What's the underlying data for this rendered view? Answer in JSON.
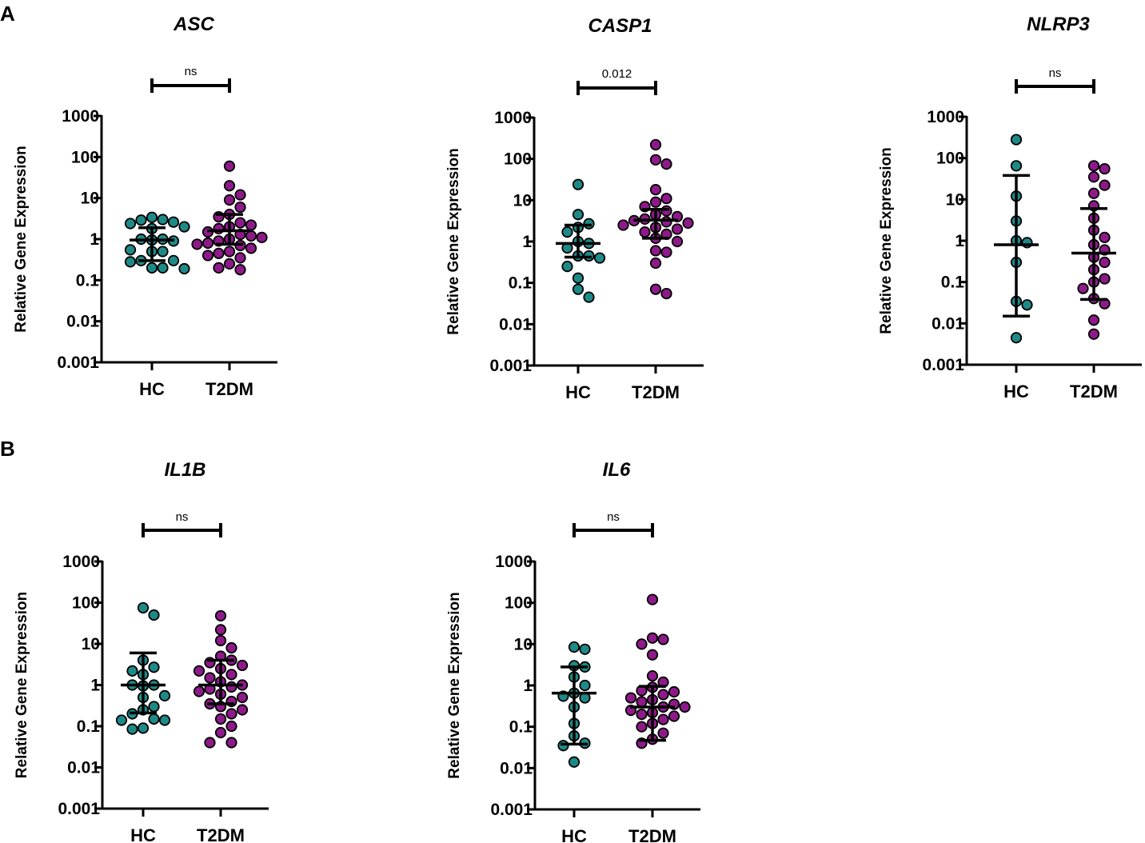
{
  "panels": [
    "A",
    "B"
  ],
  "chart_data": [
    {
      "type": "scatter",
      "title": "ASC",
      "ylabel": "Relative Gene Expression",
      "yscale": "log",
      "ylim": [
        0.001,
        1000
      ],
      "yticks": [
        "0.001",
        "0.01",
        "0.1",
        "1",
        "10",
        "100",
        "1000"
      ],
      "categories": [
        "HC",
        "T2DM"
      ],
      "significance": "ns",
      "colors": {
        "HC": "#1e8a88",
        "T2DM": "#8e1a8a"
      },
      "series": [
        {
          "name": "HC",
          "values": [
            3.4,
            2.6,
            3.0,
            2.9,
            2.0,
            2.4,
            1.8,
            1.0,
            0.95,
            0.9,
            1.0,
            0.5,
            0.55,
            0.5,
            0.3,
            0.28,
            0.3,
            0.2,
            0.2,
            0.19
          ],
          "median": 0.95,
          "q1": 0.3,
          "q3": 1.9
        },
        {
          "name": "T2DM",
          "values": [
            60,
            20,
            12,
            9,
            6,
            4,
            3.5,
            2.5,
            2.2,
            2.0,
            1.8,
            1.5,
            1.3,
            1.2,
            1.1,
            1.0,
            0.9,
            0.8,
            0.75,
            0.7,
            0.6,
            0.5,
            0.45,
            0.4,
            0.35,
            0.25,
            0.2,
            0.18
          ],
          "median": 1.6,
          "q1": 0.75,
          "q3": 4.0
        }
      ]
    },
    {
      "type": "scatter",
      "title": "CASP1",
      "ylabel": "Relative Gene Expression",
      "yscale": "log",
      "ylim": [
        0.001,
        1000
      ],
      "yticks": [
        "0.001",
        "0.01",
        "0.1",
        "1",
        "10",
        "100",
        "1000"
      ],
      "categories": [
        "HC",
        "T2DM"
      ],
      "significance": "0.012",
      "colors": {
        "HC": "#1e8a88",
        "T2DM": "#8e1a8a"
      },
      "series": [
        {
          "name": "HC",
          "values": [
            24,
            4.5,
            2.7,
            2.2,
            1.7,
            1.0,
            0.9,
            0.7,
            0.45,
            0.4,
            0.45,
            0.25,
            0.13,
            0.07,
            0.045
          ],
          "median": 0.9,
          "q1": 0.42,
          "q3": 2.5
        },
        {
          "name": "T2DM",
          "values": [
            220,
            95,
            75,
            18,
            11,
            9,
            7,
            5.5,
            4.5,
            4,
            3.5,
            3.2,
            3.0,
            2.8,
            2.5,
            2.2,
            2.0,
            1.7,
            1.5,
            1.2,
            1.0,
            0.6,
            0.55,
            0.3,
            0.07,
            0.055
          ],
          "median": 3.3,
          "q1": 1.2,
          "q3": 6.0
        }
      ]
    },
    {
      "type": "scatter",
      "title": "NLRP3",
      "ylabel": "Relative Gene Expression",
      "yscale": "log",
      "ylim": [
        0.001,
        1000
      ],
      "yticks": [
        "0.001",
        "0.01",
        "0.1",
        "1",
        "10",
        "100",
        "1000"
      ],
      "categories": [
        "HC",
        "T2DM"
      ],
      "significance": "ns",
      "colors": {
        "HC": "#1e8a88",
        "T2DM": "#8e1a8a"
      },
      "series": [
        {
          "name": "HC",
          "values": [
            280,
            65,
            12,
            3.0,
            1.0,
            0.9,
            0.3,
            0.034,
            0.028,
            0.0045
          ],
          "median": 0.8,
          "q1": 0.015,
          "q3": 38
        },
        {
          "name": "T2DM",
          "values": [
            65,
            55,
            35,
            22,
            14,
            7,
            3.5,
            1.8,
            1.2,
            0.8,
            0.6,
            0.4,
            0.3,
            0.2,
            0.12,
            0.1,
            0.07,
            0.04,
            0.03,
            0.012,
            0.0055
          ],
          "median": 0.5,
          "q1": 0.038,
          "q3": 6.0
        }
      ]
    },
    {
      "type": "scatter",
      "title": "IL1B",
      "ylabel": "Relative Gene Expression",
      "yscale": "log",
      "ylim": [
        0.001,
        1000
      ],
      "yticks": [
        "0.001",
        "0.01",
        "0.1",
        "1",
        "10",
        "100",
        "1000"
      ],
      "categories": [
        "HC",
        "T2DM"
      ],
      "significance": "ns",
      "colors": {
        "HC": "#1e8a88",
        "T2DM": "#8e1a8a"
      },
      "series": [
        {
          "name": "HC",
          "values": [
            75,
            50,
            4.0,
            2.7,
            2.2,
            1.8,
            1.0,
            1.0,
            0.95,
            0.55,
            0.5,
            0.3,
            0.25,
            0.2,
            0.15,
            0.14,
            0.14,
            0.09,
            0.085
          ],
          "median": 1.0,
          "q1": 0.21,
          "q3": 6.0
        },
        {
          "name": "T2DM",
          "values": [
            48,
            22,
            12,
            8,
            5,
            4,
            3.5,
            3,
            2.5,
            2.2,
            1.8,
            1.5,
            1.2,
            1.0,
            0.9,
            0.8,
            0.7,
            0.6,
            0.5,
            0.4,
            0.35,
            0.3,
            0.25,
            0.2,
            0.15,
            0.1,
            0.07,
            0.04,
            0.04
          ],
          "median": 1.0,
          "q1": 0.35,
          "q3": 4.0
        }
      ]
    },
    {
      "type": "scatter",
      "title": "IL6",
      "ylabel": "Relative Gene Expression",
      "yscale": "log",
      "ylim": [
        0.001,
        1000
      ],
      "yticks": [
        "0.001",
        "0.01",
        "0.1",
        "1",
        "10",
        "100",
        "1000"
      ],
      "categories": [
        "HC",
        "T2DM"
      ],
      "significance": "ns",
      "colors": {
        "HC": "#1e8a88",
        "T2DM": "#8e1a8a"
      },
      "series": [
        {
          "name": "HC",
          "values": [
            8.5,
            7.5,
            3.0,
            2.8,
            1.6,
            1.0,
            0.65,
            0.55,
            0.5,
            0.3,
            0.12,
            0.06,
            0.04,
            0.035,
            0.014
          ],
          "median": 0.65,
          "q1": 0.038,
          "q3": 2.8
        },
        {
          "name": "T2DM",
          "values": [
            120,
            14,
            13,
            10,
            5.5,
            1.7,
            1.2,
            0.9,
            0.75,
            0.7,
            0.6,
            0.5,
            0.45,
            0.4,
            0.35,
            0.3,
            0.3,
            0.25,
            0.22,
            0.2,
            0.18,
            0.15,
            0.12,
            0.1,
            0.07,
            0.05,
            0.04
          ],
          "median": 0.3,
          "q1": 0.047,
          "q3": 0.95
        }
      ]
    }
  ]
}
